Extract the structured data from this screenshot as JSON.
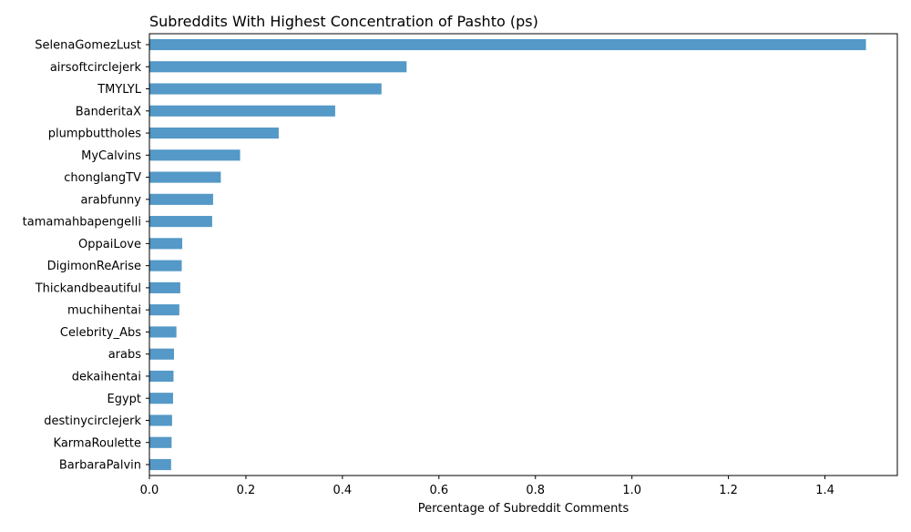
{
  "chart_data": {
    "type": "bar",
    "orientation": "horizontal",
    "title": "Subreddits With Highest Concentration of Pashto (ps)",
    "xlabel": "Percentage of Subreddit Comments",
    "ylabel": "",
    "xlim": [
      0,
      1.55
    ],
    "xticks": [
      0.0,
      0.2,
      0.4,
      0.6,
      0.8,
      1.0,
      1.2,
      1.4
    ],
    "xtick_labels": [
      "0.0",
      "0.2",
      "0.4",
      "0.6",
      "0.8",
      "1.0",
      "1.2",
      "1.4"
    ],
    "grid": false,
    "legend": "none",
    "bar_color": "#5499c7",
    "categories": [
      "SelenaGomezLust",
      "airsoftcirclejerk",
      "TMYLYL",
      "BanderitaX",
      "plumpbuttholes",
      "MyCalvins",
      "chonglangTV",
      "arabfunny",
      "tamamahbapengelli",
      "OppaiLove",
      "DigimonReArise",
      "Thickandbeautiful",
      "muchihentai",
      "Celebrity_Abs",
      "arabs",
      "dekaihentai",
      "Egypt",
      "destinycirclejerk",
      "KarmaRoulette",
      "BarbaraPalvin"
    ],
    "values": [
      1.485,
      0.533,
      0.481,
      0.385,
      0.268,
      0.188,
      0.148,
      0.132,
      0.13,
      0.068,
      0.067,
      0.064,
      0.062,
      0.056,
      0.051,
      0.05,
      0.049,
      0.047,
      0.046,
      0.045
    ]
  }
}
